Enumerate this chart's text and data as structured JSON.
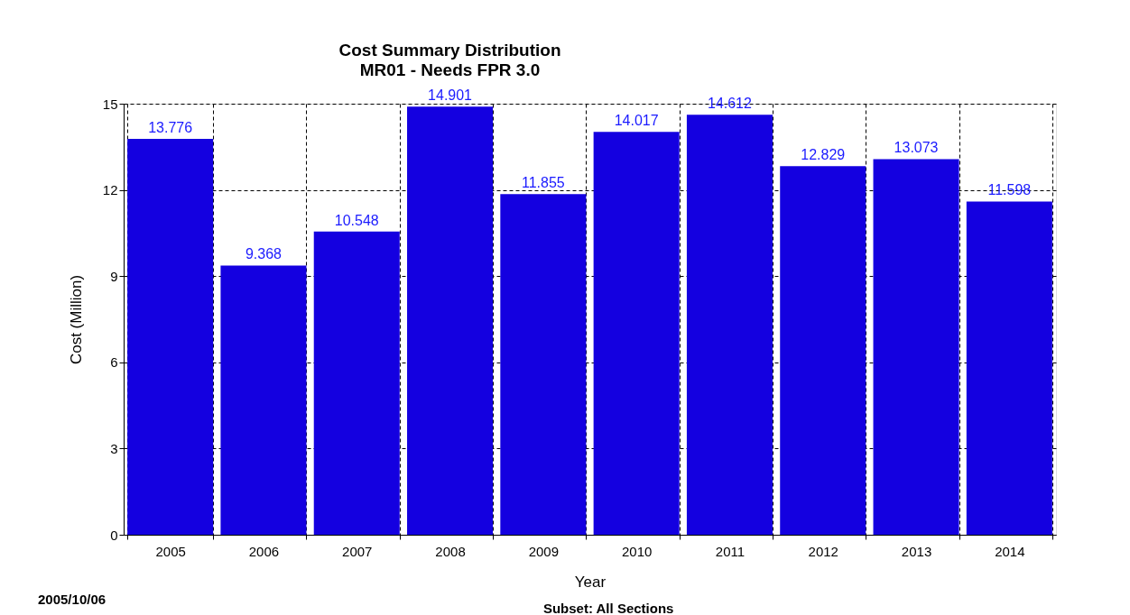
{
  "chart_data": {
    "type": "bar",
    "title": "Cost Summary Distribution",
    "subtitle": "MR01 - Needs FPR 3.0",
    "xlabel": "Year",
    "ylabel": "Cost (Million)",
    "categories": [
      "2005",
      "2006",
      "2007",
      "2008",
      "2009",
      "2010",
      "2011",
      "2012",
      "2013",
      "2014"
    ],
    "values": [
      13.776,
      9.368,
      10.548,
      14.901,
      11.855,
      14.017,
      14.612,
      12.829,
      13.073,
      11.598
    ],
    "color": "#1400e0",
    "ylim": [
      0,
      15
    ],
    "yticks": [
      0,
      3,
      6,
      9,
      12,
      15
    ],
    "grid": true,
    "data_labels": true,
    "annotations": [
      "2005/10/06",
      "Subset: All Sections"
    ]
  }
}
